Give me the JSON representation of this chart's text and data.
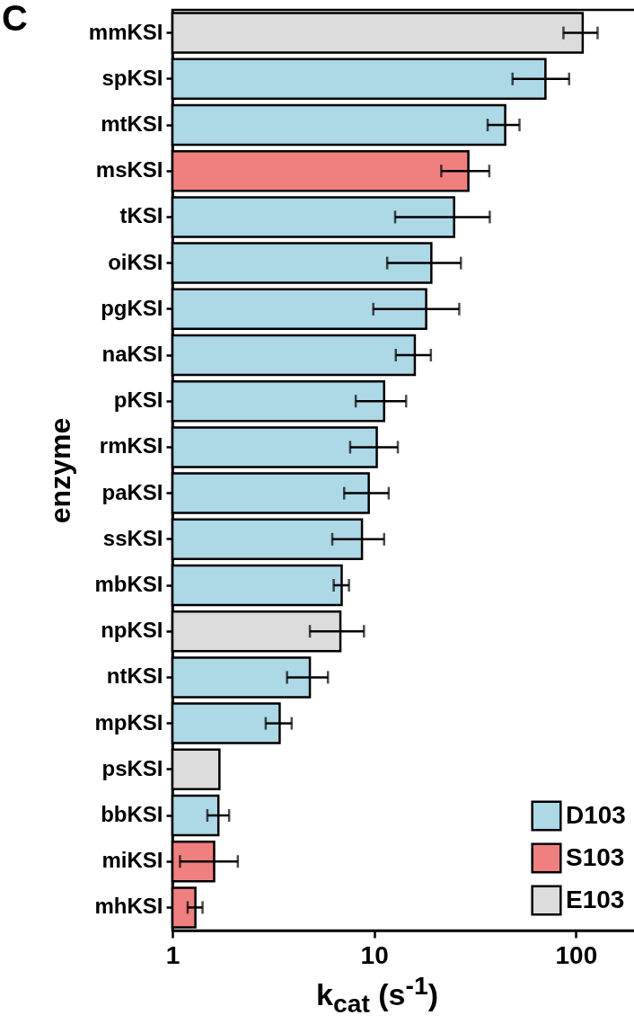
{
  "chart_data": {
    "type": "bar",
    "orientation": "horizontal",
    "categories": [
      "mmKSI",
      "spKSI",
      "mtKSI",
      "msKSI",
      "tKSI",
      "oiKSI",
      "pgKSI",
      "naKSI",
      "pKSI",
      "rmKSI",
      "paKSI",
      "ssKSI",
      "mbKSI",
      "npKSI",
      "ntKSI",
      "mpKSI",
      "psKSI",
      "bbKSI",
      "miKSI",
      "mhKSI"
    ],
    "series": [
      {
        "name": "D103",
        "color": "#add8e6",
        "values": [
          null,
          70.6,
          44.6,
          null,
          24.9,
          19.2,
          18.1,
          15.9,
          11.2,
          10.3,
          9.4,
          8.7,
          6.9,
          null,
          4.8,
          3.4,
          null,
          1.69,
          null,
          null
        ],
        "errors": [
          null,
          [
            48.5,
            92.5
          ],
          [
            36.5,
            52.5
          ],
          null,
          [
            12.7,
            37.4
          ],
          [
            11.6,
            26.9
          ],
          [
            9.9,
            26.4
          ],
          [
            12.8,
            19.1
          ],
          [
            8.1,
            14.4
          ],
          [
            7.6,
            13.1
          ],
          [
            7.1,
            11.8
          ],
          [
            6.2,
            11.2
          ],
          [
            6.3,
            7.5
          ],
          null,
          [
            3.7,
            5.9
          ],
          [
            2.9,
            3.9
          ],
          null,
          [
            1.49,
            1.91
          ],
          null,
          null
        ]
      },
      {
        "name": "S103",
        "color": "#f08080",
        "values": [
          null,
          null,
          null,
          29.3,
          null,
          null,
          null,
          null,
          null,
          null,
          null,
          null,
          null,
          null,
          null,
          null,
          null,
          null,
          1.61,
          1.3
        ],
        "errors": [
          null,
          null,
          null,
          [
            21.5,
            37.2
          ],
          null,
          null,
          null,
          null,
          null,
          null,
          null,
          null,
          null,
          null,
          null,
          null,
          null,
          null,
          [
            1.09,
            2.11
          ],
          [
            1.19,
            1.41
          ]
        ]
      },
      {
        "name": "E103",
        "color": "#dcdcdc",
        "values": [
          108,
          null,
          null,
          null,
          null,
          null,
          null,
          null,
          null,
          null,
          null,
          null,
          null,
          6.8,
          null,
          null,
          1.71,
          null,
          null,
          null
        ],
        "errors": [
          [
            86.7,
            128
          ],
          null,
          null,
          null,
          null,
          null,
          null,
          null,
          null,
          null,
          null,
          null,
          null,
          [
            4.8,
            8.9
          ],
          null,
          null,
          null,
          null,
          null,
          null
        ]
      }
    ],
    "xlabel": "k$_{cat}$ (s$^{-1}$)",
    "ylabel": "enzyme",
    "xlim": [
      1,
      200
    ],
    "xticks": [
      1,
      10,
      100
    ],
    "log": "x",
    "legend": "bottom right",
    "grid": false,
    "annotations": [
      "C"
    ]
  }
}
